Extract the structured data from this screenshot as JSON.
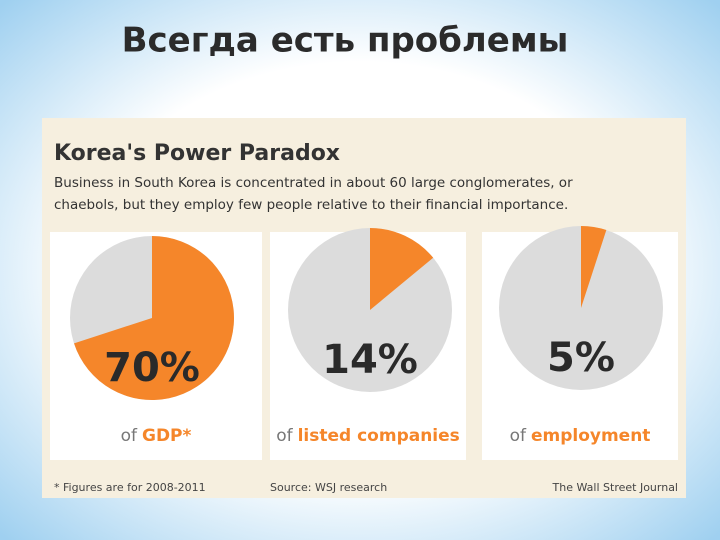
{
  "slide_title": "Всегда есть проблемы",
  "header": {
    "title": "Korea's Power Paradox",
    "subtitle": [
      "Business in South Korea is concentrated in about 60 large conglomerates, or",
      "chaebols, but they employ few people relative to their financial importance."
    ]
  },
  "chart_data": [
    {
      "type": "pie",
      "values": [
        70
      ],
      "value_labels": [
        "70%"
      ],
      "caption_prefix": "of",
      "caption": "GDP*",
      "color": "#f5862a",
      "rest_color": "#dcdcdc"
    },
    {
      "type": "pie",
      "values": [
        14
      ],
      "value_labels": [
        "14%"
      ],
      "caption_prefix": "of",
      "caption": "listed companies",
      "color": "#f5862a",
      "rest_color": "#dcdcdc"
    },
    {
      "type": "pie",
      "values": [
        5
      ],
      "value_labels": [
        "5%"
      ],
      "caption_prefix": "of",
      "caption": "employment",
      "color": "#f5862a",
      "rest_color": "#dcdcdc"
    }
  ],
  "footer": {
    "note": "* Figures are for 2008-2011",
    "source": "Source: WSJ research",
    "credit": "The Wall Street Journal"
  }
}
